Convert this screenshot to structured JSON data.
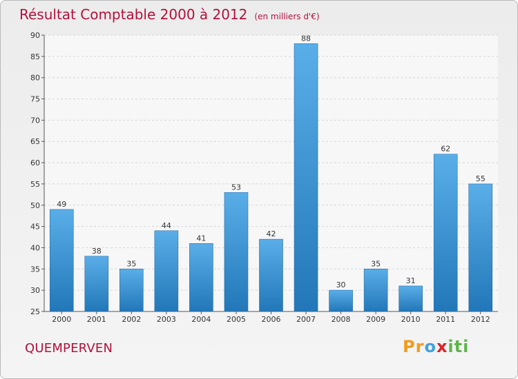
{
  "chart_data": {
    "type": "bar",
    "title": "Résultat Comptable 2000 à 2012",
    "subtitle": "(en milliers d'€)",
    "categories": [
      "2000",
      "2001",
      "2002",
      "2003",
      "2004",
      "2005",
      "2006",
      "2007",
      "2008",
      "2009",
      "2010",
      "2011",
      "2012"
    ],
    "values": [
      49,
      38,
      35,
      44,
      41,
      53,
      42,
      88,
      30,
      35,
      31,
      62,
      55
    ],
    "ylim": [
      25,
      90
    ],
    "yticks": [
      25,
      30,
      35,
      40,
      45,
      50,
      55,
      60,
      65,
      70,
      75,
      80,
      85,
      90
    ],
    "xlabel": "",
    "ylabel": "",
    "grid": true
  },
  "commune": "QUEMPERVEN",
  "logo": {
    "letters": [
      "P",
      "r",
      "o",
      "x",
      "i",
      "t",
      "i"
    ],
    "colors": [
      "#f59a1b",
      "#f59a1b",
      "#3fa2dd",
      "#d8232a",
      "#5fb548",
      "#5fb548",
      "#5fb548"
    ]
  },
  "colors": {
    "bar_top": "#5aaee8",
    "bar_bottom": "#2277b8",
    "title": "#b3103b"
  }
}
